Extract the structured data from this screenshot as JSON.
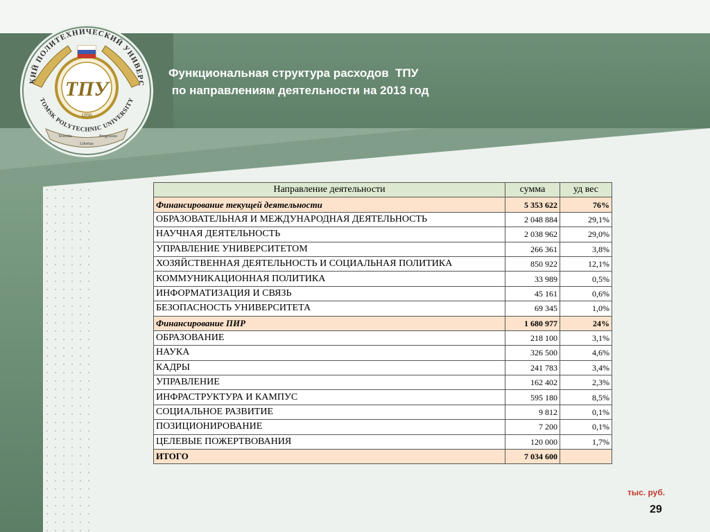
{
  "slide": {
    "title_line1": "Функциональная структура расходов  ТПУ",
    "title_line2": " по направлениям деятельности на 2013 год",
    "unit_note": "тыс. руб.",
    "page_number": "29",
    "logo": {
      "name": "tpu-emblem",
      "text_top": "ТОМСКИЙ ПОЛИТЕХНИЧЕСКИЙ УНИВЕРСИТЕТ",
      "text_bottom": "TOMSK POLYTECHNIC UNIVERSITY",
      "monogram": "ТПУ",
      "year": "1896",
      "ribbon_left": "Scientia",
      "ribbon_center": "Libertas",
      "ribbon_right": "Progressus"
    }
  },
  "table": {
    "headers": [
      "Направление деятельности",
      "сумма",
      "уд вес"
    ],
    "rows": [
      {
        "type": "group",
        "name": "Финансирование текущей деятельности",
        "sum": "5 353 622",
        "share": "76%"
      },
      {
        "type": "item",
        "name": "ОБРАЗОВАТЕЛЬНАЯ И МЕЖДУНАРОДНАЯ ДЕЯТЕЛЬНОСТЬ",
        "sum": "2 048 884",
        "share": "29,1%"
      },
      {
        "type": "item",
        "name": "НАУЧНАЯ ДЕЯТЕЛЬНОСТЬ",
        "sum": "2 038 962",
        "share": "29,0%"
      },
      {
        "type": "item",
        "name": "УПРАВЛЕНИЕ УНИВЕРСИТЕТОМ",
        "sum": "266 361",
        "share": "3,8%"
      },
      {
        "type": "item",
        "name": "ХОЗЯЙСТВЕННАЯ ДЕЯТЕЛЬНОСТЬ И СОЦИАЛЬНАЯ ПОЛИТИКА",
        "sum": "850 922",
        "share": "12,1%"
      },
      {
        "type": "item",
        "name": "КОММУНИКАЦИОННАЯ ПОЛИТИКА",
        "sum": "33 989",
        "share": "0,5%"
      },
      {
        "type": "item",
        "name": "ИНФОРМАТИЗАЦИЯ И СВЯЗЬ",
        "sum": "45 161",
        "share": "0,6%"
      },
      {
        "type": "item",
        "name": "БЕЗОПАСНОСТЬ УНИВЕРСИТЕТА",
        "sum": "69 345",
        "share": "1,0%"
      },
      {
        "type": "group",
        "name": "Финансирование ПИР",
        "sum": "1 680 977",
        "share": "24%"
      },
      {
        "type": "item",
        "name": "ОБРАЗОВАНИЕ",
        "sum": "218 100",
        "share": "3,1%"
      },
      {
        "type": "item",
        "name": "НАУКА",
        "sum": "326 500",
        "share": "4,6%"
      },
      {
        "type": "item",
        "name": "КАДРЫ",
        "sum": "241 783",
        "share": "3,4%"
      },
      {
        "type": "item",
        "name": "УПРАВЛЕНИЕ",
        "sum": "162 402",
        "share": "2,3%"
      },
      {
        "type": "item",
        "name": "ИНФРАСТРУКТУРА И КАМПУС",
        "sum": "595 180",
        "share": "8,5%"
      },
      {
        "type": "item",
        "name": "СОЦИАЛЬНОЕ РАЗВИТИЕ",
        "sum": "9 812",
        "share": "0,1%"
      },
      {
        "type": "item",
        "name": "ПОЗИЦИОНИРОВАНИЕ",
        "sum": "7 200",
        "share": "0,1%"
      },
      {
        "type": "item",
        "name": "ЦЕЛЕВЫЕ ПОЖЕРТВОВАНИЯ",
        "sum": "120 000",
        "share": "1,7%"
      },
      {
        "type": "total",
        "name": "ИТОГО",
        "sum": "7 034 600",
        "share": ""
      }
    ]
  },
  "colors": {
    "header_green": "#5f8068",
    "table_header_bg": "#dde8d0",
    "group_row_bg": "#fde3cc",
    "unit_note_red": "#c0392b"
  }
}
